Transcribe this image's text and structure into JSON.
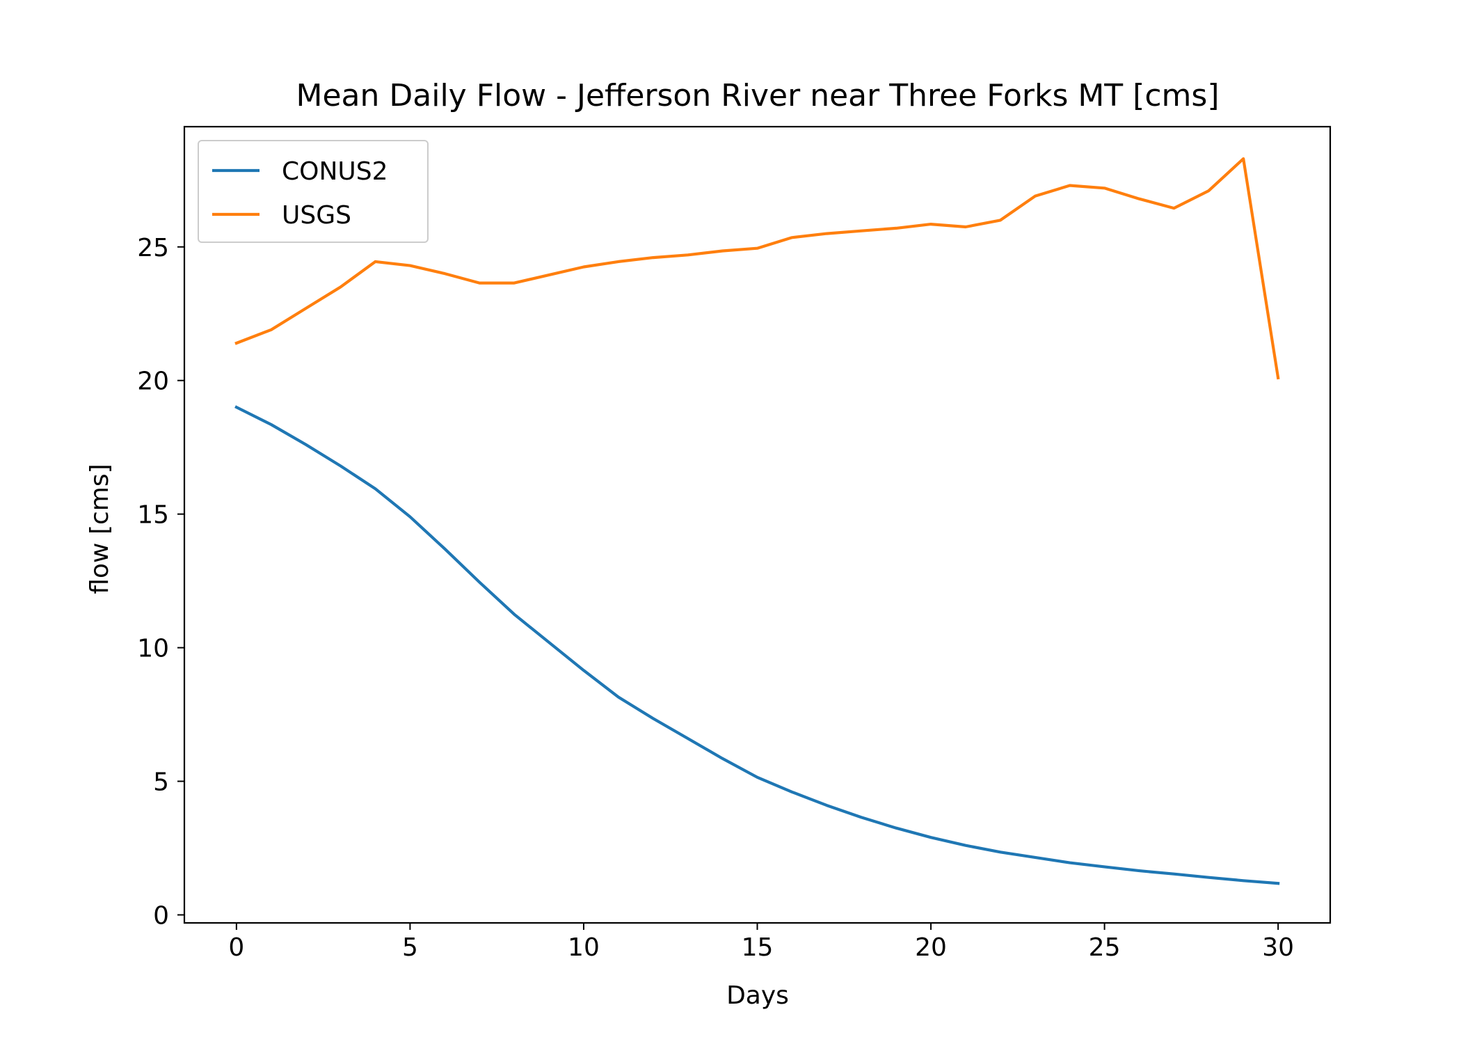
{
  "chart_data": {
    "type": "line",
    "title": "Mean Daily Flow - Jefferson River near Three Forks MT [cms]",
    "xlabel": "Days",
    "ylabel": "flow [cms]",
    "xlim": [
      -1.5,
      31.5
    ],
    "ylim": [
      -0.3,
      29.5
    ],
    "xticks": [
      0,
      5,
      10,
      15,
      20,
      25,
      30
    ],
    "yticks": [
      0,
      5,
      10,
      15,
      20,
      25
    ],
    "grid": false,
    "legend": {
      "position": "top-left"
    },
    "x": [
      0,
      1,
      2,
      3,
      4,
      5,
      6,
      7,
      8,
      9,
      10,
      11,
      12,
      13,
      14,
      15,
      16,
      17,
      18,
      19,
      20,
      21,
      22,
      23,
      24,
      25,
      26,
      27,
      28,
      29,
      30
    ],
    "series": [
      {
        "name": "CONUS2",
        "color": "#1f77b4",
        "values": [
          19.0,
          18.35,
          17.6,
          16.8,
          15.95,
          14.9,
          13.7,
          12.45,
          11.25,
          10.2,
          9.15,
          8.15,
          7.35,
          6.6,
          5.85,
          5.15,
          4.6,
          4.1,
          3.65,
          3.25,
          2.9,
          2.6,
          2.35,
          2.15,
          1.95,
          1.8,
          1.65,
          1.53,
          1.4,
          1.28,
          1.18
        ]
      },
      {
        "name": "USGS",
        "color": "#ff7f0e",
        "values": [
          21.4,
          21.9,
          22.7,
          23.5,
          24.45,
          24.3,
          24.0,
          23.65,
          23.65,
          23.95,
          24.25,
          24.45,
          24.6,
          24.7,
          24.85,
          24.95,
          25.35,
          25.5,
          25.6,
          25.7,
          25.85,
          25.75,
          26.0,
          26.9,
          27.3,
          27.2,
          26.8,
          26.45,
          27.1,
          28.3,
          20.1
        ]
      }
    ]
  }
}
